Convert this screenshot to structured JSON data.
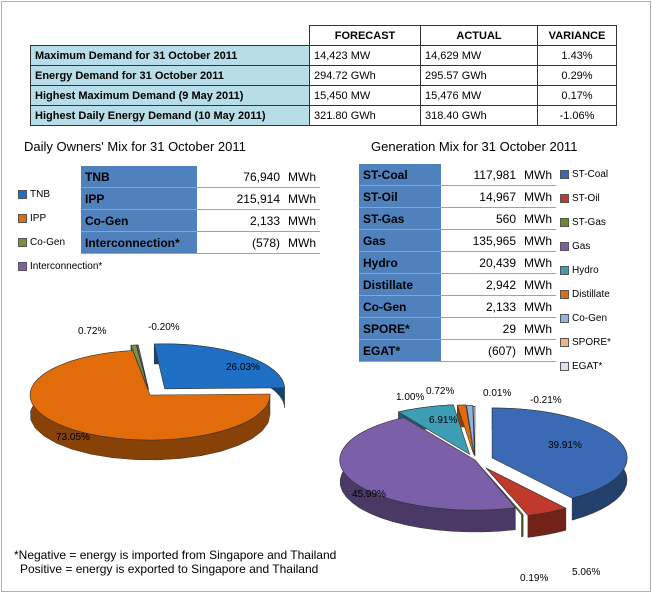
{
  "summary": {
    "headers": [
      "",
      "FORECAST",
      "ACTUAL",
      "VARIANCE"
    ],
    "rows": [
      {
        "label": "Maximum Demand for 31 October 2011",
        "forecast": "14,423 MW",
        "actual": "14,629 MW",
        "variance": "1.43%"
      },
      {
        "label": "Energy Demand for 31 October 2011",
        "forecast": "294.72 GWh",
        "actual": "295.57 GWh",
        "variance": "0.29%"
      },
      {
        "label": "Highest Maximum Demand (9 May 2011)",
        "forecast": "15,450 MW",
        "actual": "15,476 MW",
        "variance": "0.17%"
      },
      {
        "label": "Highest Daily Energy Demand (10 May 2011)",
        "forecast": "321.80 GWh",
        "actual": "318.40 GWh",
        "variance": "-1.06%"
      }
    ]
  },
  "owners": {
    "title": "Daily Owners' Mix for 31 October 2011",
    "unit": "MWh",
    "rows": [
      {
        "name": "TNB",
        "value": "76,940"
      },
      {
        "name": "IPP",
        "value": "215,914"
      },
      {
        "name": "Co-Gen",
        "value": "2,133"
      },
      {
        "name": "Interconnection*",
        "value": "(578)"
      }
    ]
  },
  "generation": {
    "title": "Generation Mix for 31 October 2011",
    "unit": "MWh",
    "rows": [
      {
        "name": "ST-Coal",
        "value": "117,981"
      },
      {
        "name": "ST-Oil",
        "value": "14,967"
      },
      {
        "name": "ST-Gas",
        "value": "560"
      },
      {
        "name": "Gas",
        "value": "135,965"
      },
      {
        "name": "Hydro",
        "value": "20,439"
      },
      {
        "name": "Distillate",
        "value": "2,942"
      },
      {
        "name": "Co-Gen",
        "value": "2,133"
      },
      {
        "name": "SPORE*",
        "value": "29"
      },
      {
        "name": "EGAT*",
        "value": "(607)"
      }
    ]
  },
  "chart_data": [
    {
      "type": "pie",
      "title": "Daily Owners' Mix for 31 October 2011",
      "categories": [
        "TNB",
        "IPP",
        "Co-Gen",
        "Interconnection*"
      ],
      "values": [
        26.03,
        73.05,
        0.72,
        -0.2
      ],
      "labels": [
        "26.03%",
        "73.05%",
        "0.72%",
        "-0.20%"
      ],
      "colors": [
        "#1f6fc4",
        "#e36c0a",
        "#77933c",
        "#7f5fa8"
      ],
      "legend_position": "left"
    },
    {
      "type": "pie",
      "title": "Generation Mix for 31 October 2011",
      "categories": [
        "ST-Coal",
        "ST-Oil",
        "ST-Gas",
        "Gas",
        "Hydro",
        "Distillate",
        "Co-Gen",
        "SPORE*",
        "EGAT*"
      ],
      "values": [
        39.91,
        5.06,
        0.19,
        45.99,
        6.91,
        1.0,
        0.72,
        0.01,
        -0.21
      ],
      "labels": [
        "39.91%",
        "5.06%",
        "0.19%",
        "45.99%",
        "6.91%",
        "1.00%",
        "0.72%",
        "0.01%",
        "-0.21%"
      ],
      "colors": [
        "#3a6ab5",
        "#c0392b",
        "#6b8e23",
        "#7b5fa8",
        "#3c9db5",
        "#e36c0a",
        "#8fb4e3",
        "#f4b183",
        "#d9e2f3"
      ],
      "legend_position": "right"
    }
  ],
  "footnote": {
    "line1": "*Negative = energy is imported from Singapore and Thailand",
    "line2": "Positive = energy is exported to Singapore and Thailand"
  }
}
